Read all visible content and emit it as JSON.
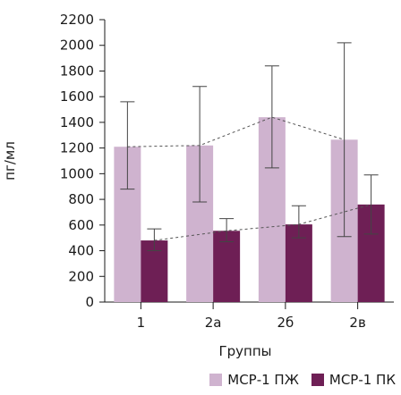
{
  "chart_data": {
    "type": "bar",
    "xlabel": "Группы",
    "ylabel": "пг/мл",
    "ylim": [
      0,
      2200
    ],
    "yticks": [
      0,
      200,
      400,
      600,
      800,
      1000,
      1200,
      1400,
      1600,
      1800,
      2000,
      2200
    ],
    "categories": [
      "1",
      "2а",
      "2б",
      "2в"
    ],
    "series": [
      {
        "name": "МСР-1 ПЖ",
        "color": "#cfb3cf",
        "values": [
          1210,
          1220,
          1440,
          1265
        ],
        "error_low": [
          880,
          780,
          1045,
          510
        ],
        "error_high": [
          1560,
          1680,
          1840,
          2020
        ]
      },
      {
        "name": "МСР-1 ПК",
        "color": "#6e1f55",
        "values": [
          480,
          555,
          605,
          760
        ],
        "error_low": [
          400,
          470,
          500,
          530
        ],
        "error_high": [
          570,
          650,
          750,
          990
        ]
      }
    ],
    "trendlines": "dashed",
    "legend_position": "bottom-right"
  }
}
